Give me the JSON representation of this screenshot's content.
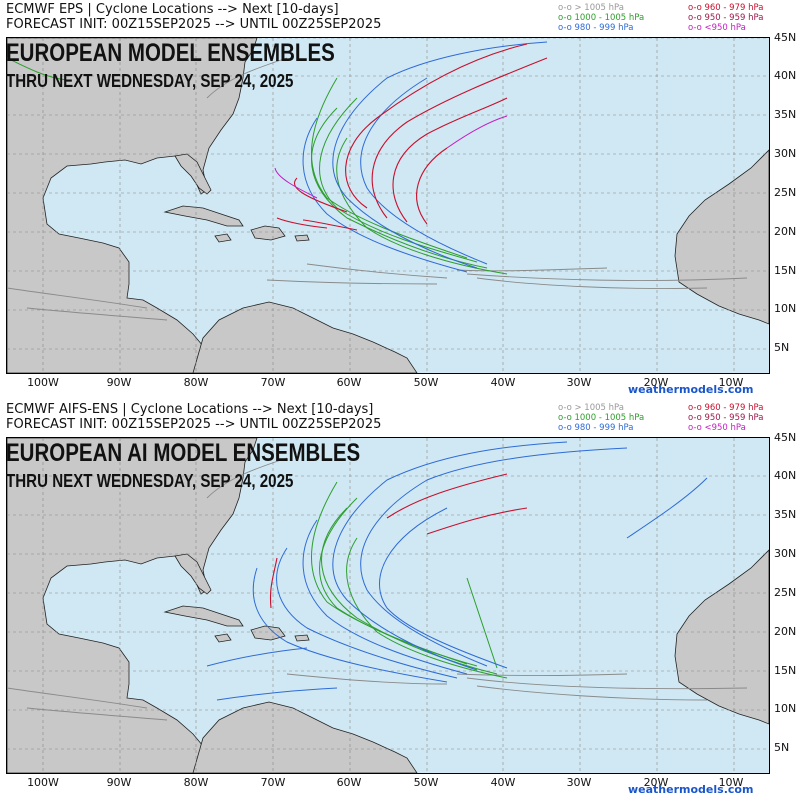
{
  "panels": [
    {
      "id": "top",
      "header_line1": "ECMWF EPS | Cyclone Locations --> Next [10-days]",
      "header_line2": "FORECAST INIT: 00Z15SEP2025 --> UNTIL 00Z25SEP2025",
      "title": "EUROPEAN MODEL ENSEMBLES",
      "subtitle": "THRU NEXT WEDNESDAY, SEP 24, 2025",
      "legend_left": [
        {
          "text": "o-o > 1005 hPa",
          "color": "#999999"
        },
        {
          "text": "o-o 1000 - 1005 hPa",
          "color": "#2e9e2e"
        },
        {
          "text": "o-o 980 - 999 hPa",
          "color": "#2f6bd6"
        }
      ],
      "legend_right": [
        {
          "text": "o-o 960 - 979 hPa",
          "color": "#c8102e"
        },
        {
          "text": "o-o 950 - 959 hPa",
          "color": "#9b1b4b"
        },
        {
          "text": "o-o <950 hPa",
          "color": "#c41ec4"
        }
      ],
      "lat_labels": [
        "45N",
        "40N",
        "35N",
        "30N",
        "25N",
        "20N",
        "15N",
        "10N",
        "5N"
      ],
      "lon_labels": [
        "100W",
        "90W",
        "80W",
        "70W",
        "60W",
        "50W",
        "40W",
        "30W",
        "20W",
        "10W"
      ],
      "watermark": "weathermodels.com"
    },
    {
      "id": "bottom",
      "header_line1": "ECMWF AIFS-ENS | Cyclone Locations --> Next [10-days]",
      "header_line2": "FORECAST INIT: 00Z15SEP2025 --> UNTIL 00Z25SEP2025",
      "title": "EUROPEAN AI MODEL ENSEMBLES",
      "subtitle": "THRU NEXT WEDNESDAY, SEP 24, 2025",
      "legend_left": [
        {
          "text": "o-o > 1005 hPa",
          "color": "#999999"
        },
        {
          "text": "o-o 1000 - 1005 hPa",
          "color": "#2e9e2e"
        },
        {
          "text": "o-o 980 - 999 hPa",
          "color": "#2f6bd6"
        }
      ],
      "legend_right": [
        {
          "text": "o-o 960 - 979 hPa",
          "color": "#c8102e"
        },
        {
          "text": "o-o 950 - 959 hPa",
          "color": "#9b1b4b"
        },
        {
          "text": "o-o <950 hPa",
          "color": "#c41ec4"
        }
      ],
      "lat_labels": [
        "45N",
        "40N",
        "35N",
        "30N",
        "25N",
        "20N",
        "15N",
        "10N",
        "5N"
      ],
      "lon_labels": [
        "100W",
        "90W",
        "80W",
        "70W",
        "60W",
        "50W",
        "40W",
        "30W",
        "20W",
        "10W"
      ],
      "watermark": "weathermodels.com"
    }
  ],
  "colors": {
    "ocean": "#cfe8f3",
    "land": "#c8c8c8",
    "coast": "#222222",
    "grid": "#999999"
  }
}
